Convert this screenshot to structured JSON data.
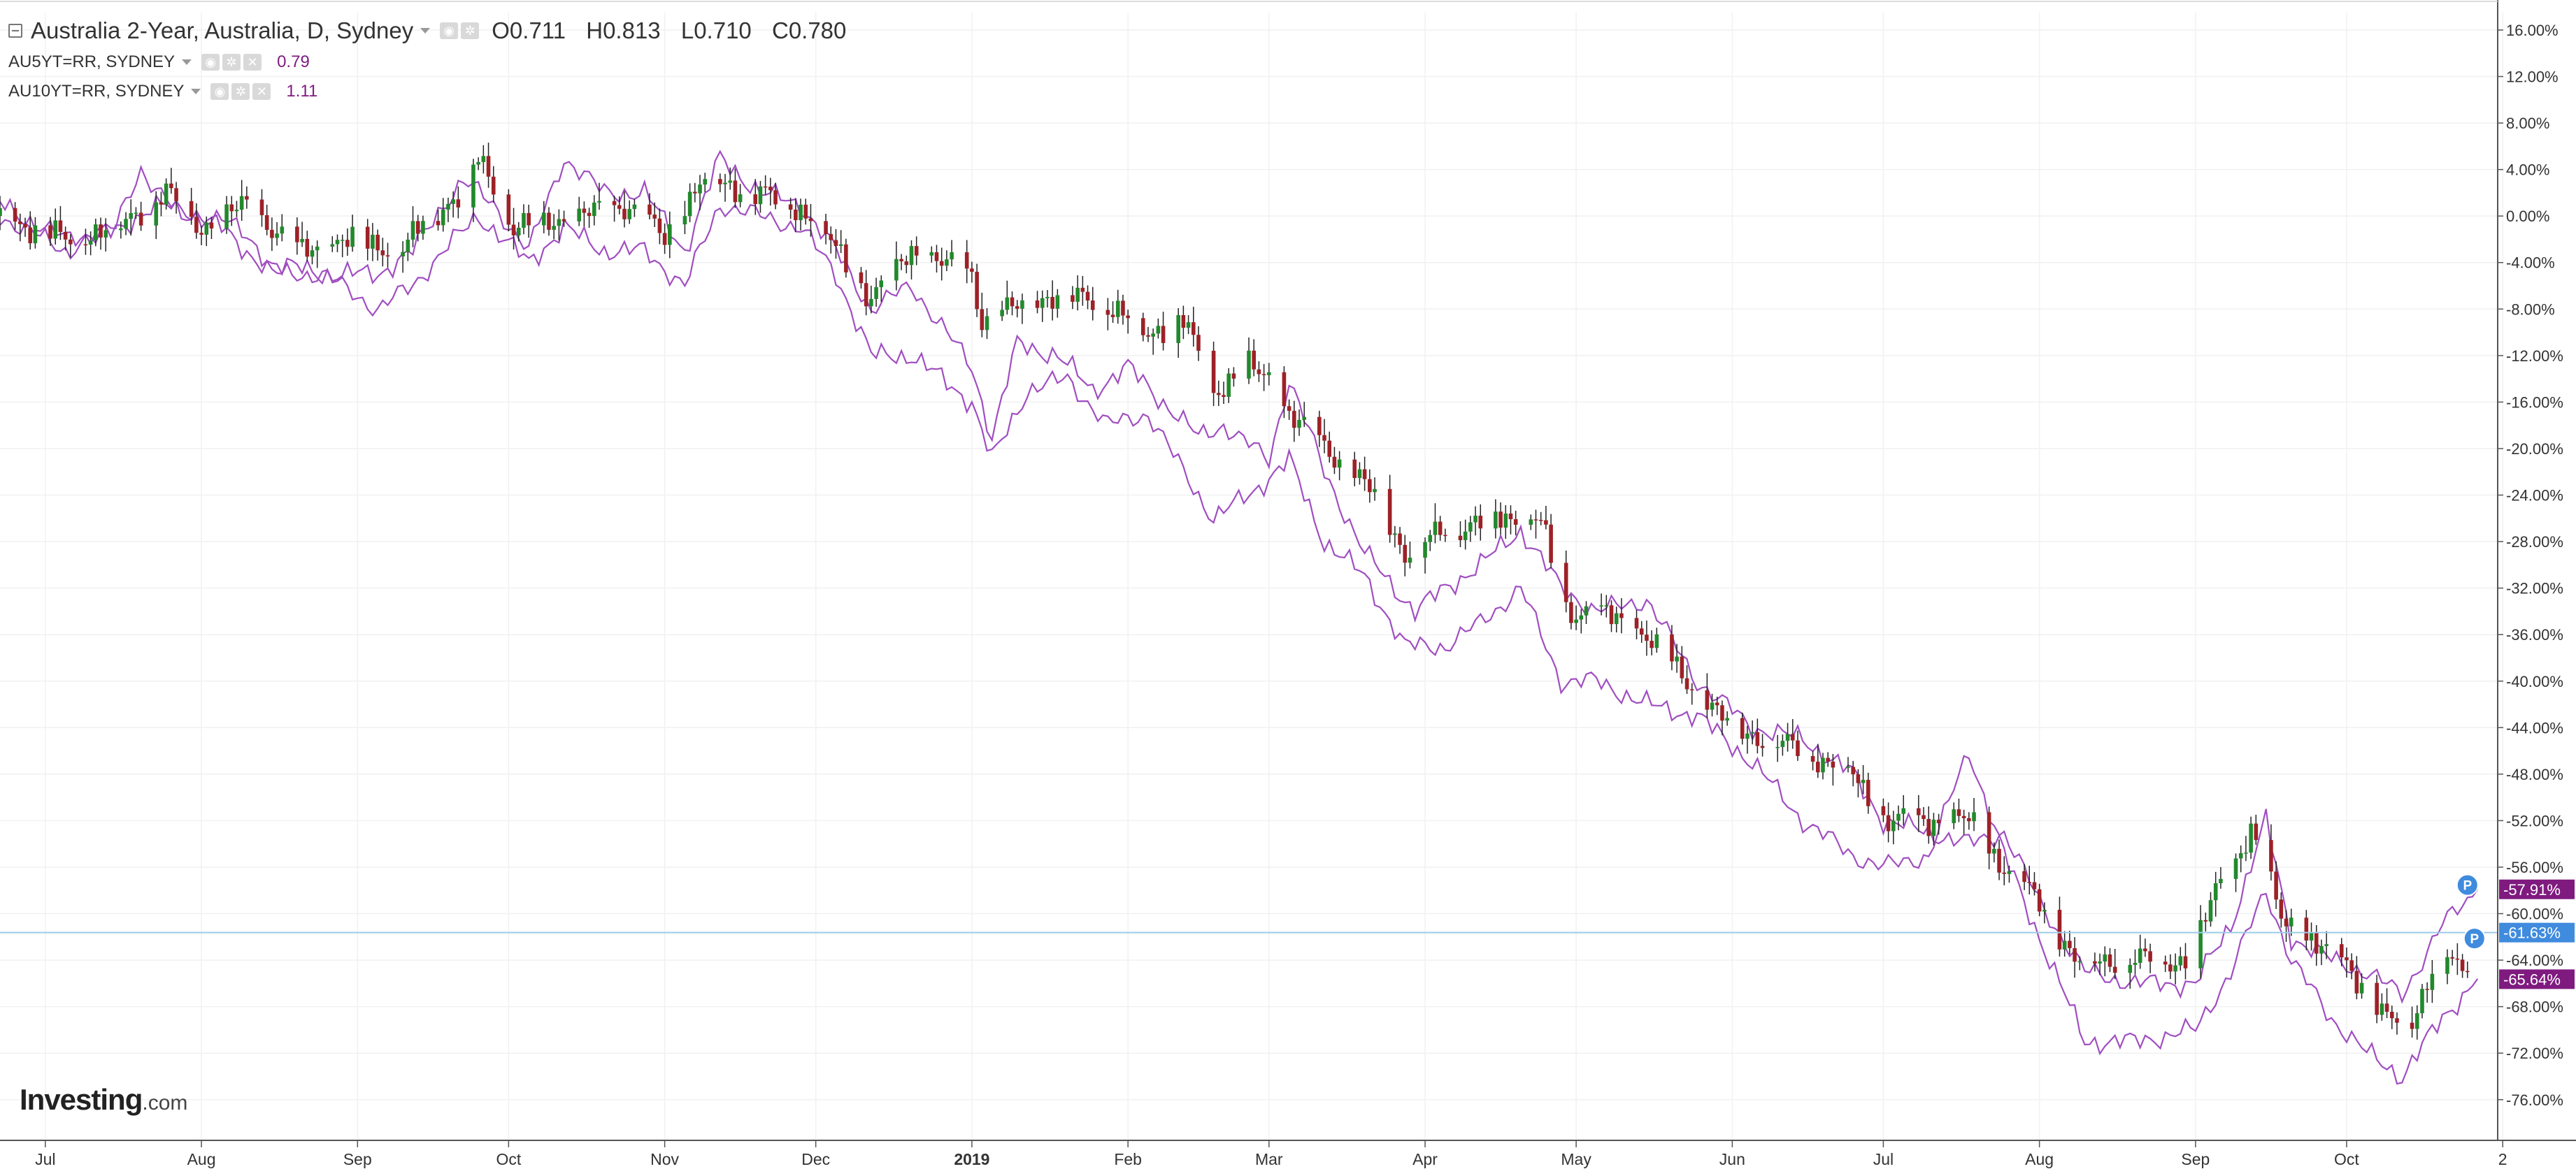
{
  "legend": {
    "main": {
      "title": "Australia 2-Year, Australia, D, Sydney",
      "o_label": "O",
      "o": "0.711",
      "h_label": "H",
      "h": "0.813",
      "l_label": "L",
      "l": "0.710",
      "c_label": "C",
      "c": "0.780"
    },
    "series": [
      {
        "title": "AU5YT=RR, SYDNEY",
        "value": "0.79"
      },
      {
        "title": "AU10YT=RR, SYDNEY",
        "value": "1.11"
      }
    ]
  },
  "logo": {
    "main": "Investing",
    "suffix": ".com"
  },
  "colors": {
    "up": "#22892c",
    "down": "#9d2127",
    "comparison": "#a04ec1",
    "price_line": "#9ccbe8",
    "label_purple": "#7f1a7f",
    "label_blue": "#3f8bde",
    "grid": "#f1f1f1",
    "axis": "#555555"
  },
  "price_labels": [
    "-57.91%",
    "-61.63%",
    "-65.64%"
  ],
  "markers": [
    "P",
    "P"
  ],
  "chart_data": {
    "type": "candlestick",
    "y_unit": "percent change",
    "ylim": [
      -79.5,
      17.5
    ],
    "y_ticks": [
      "16.00%",
      "12.00%",
      "8.00%",
      "4.00%",
      "0.00%",
      "-4.00%",
      "-8.00%",
      "-12.00%",
      "-16.00%",
      "-20.00%",
      "-24.00%",
      "-28.00%",
      "-32.00%",
      "-36.00%",
      "-40.00%",
      "-44.00%",
      "-48.00%",
      "-52.00%",
      "-56.00%",
      "-60.00%",
      "-64.00%",
      "-68.00%",
      "-72.00%",
      "-76.00%"
    ],
    "x_ticks": [
      {
        "label": "Jul",
        "date": "2018-07-01"
      },
      {
        "label": "Aug",
        "date": "2018-08-01"
      },
      {
        "label": "Sep",
        "date": "2018-09-01"
      },
      {
        "label": "Oct",
        "date": "2018-10-01"
      },
      {
        "label": "Nov",
        "date": "2018-11-01"
      },
      {
        "label": "Dec",
        "date": "2018-12-01"
      },
      {
        "label": "2019",
        "date": "2019-01-01",
        "bold": true
      },
      {
        "label": "Feb",
        "date": "2019-02-01"
      },
      {
        "label": "Mar",
        "date": "2019-03-01"
      },
      {
        "label": "Apr",
        "date": "2019-04-01"
      },
      {
        "label": "May",
        "date": "2019-05-01"
      },
      {
        "label": "Jun",
        "date": "2019-06-01"
      },
      {
        "label": "Jul",
        "date": "2019-07-01"
      },
      {
        "label": "Aug",
        "date": "2019-08-01"
      },
      {
        "label": "Sep",
        "date": "2019-09-01"
      },
      {
        "label": "Oct",
        "date": "2019-10-01"
      },
      {
        "label": "2",
        "date": "2019-11-01"
      }
    ],
    "x_range": [
      "2018-06-22",
      "2019-10-31"
    ],
    "current_value": -61.63,
    "series": [
      {
        "name": "Australia 2-Year",
        "style": "candles",
        "points": [
          [
            "2018-06-22",
            0
          ],
          [
            "2018-07-05",
            -2
          ],
          [
            "2018-07-15",
            -1
          ],
          [
            "2018-07-25",
            2
          ],
          [
            "2018-08-01",
            -1
          ],
          [
            "2018-08-10",
            1
          ],
          [
            "2018-08-20",
            -3
          ],
          [
            "2018-09-01",
            -2
          ],
          [
            "2018-09-10",
            -3
          ],
          [
            "2018-09-15",
            0
          ],
          [
            "2018-09-22",
            2
          ],
          [
            "2018-09-25",
            5
          ],
          [
            "2018-10-02",
            -1
          ],
          [
            "2018-10-15",
            0
          ],
          [
            "2018-10-25",
            1
          ],
          [
            "2018-11-01",
            -2
          ],
          [
            "2018-11-08",
            3
          ],
          [
            "2018-11-20",
            2
          ],
          [
            "2018-12-01",
            0
          ],
          [
            "2018-12-05",
            -3
          ],
          [
            "2018-12-12",
            -7
          ],
          [
            "2018-12-20",
            -3
          ],
          [
            "2019-01-01",
            -5
          ],
          [
            "2019-01-03",
            -9
          ],
          [
            "2019-01-15",
            -7
          ],
          [
            "2019-01-25",
            -7
          ],
          [
            "2019-02-05",
            -10
          ],
          [
            "2019-02-12",
            -9
          ],
          [
            "2019-02-18",
            -15
          ],
          [
            "2019-02-25",
            -13
          ],
          [
            "2019-03-01",
            -14
          ],
          [
            "2019-03-05",
            -17
          ],
          [
            "2019-03-15",
            -21
          ],
          [
            "2019-03-22",
            -24
          ],
          [
            "2019-03-28",
            -29
          ],
          [
            "2019-04-05",
            -27
          ],
          [
            "2019-04-15",
            -26
          ],
          [
            "2019-04-24",
            -26
          ],
          [
            "2019-04-28",
            -34
          ],
          [
            "2019-05-05",
            -34
          ],
          [
            "2019-05-15",
            -36
          ],
          [
            "2019-05-25",
            -41
          ],
          [
            "2019-06-01",
            -44
          ],
          [
            "2019-06-08",
            -45
          ],
          [
            "2019-06-15",
            -46
          ],
          [
            "2019-06-25",
            -48
          ],
          [
            "2019-07-01",
            -52
          ],
          [
            "2019-07-10",
            -52
          ],
          [
            "2019-07-18",
            -52
          ],
          [
            "2019-07-25",
            -56
          ],
          [
            "2019-08-01",
            -59
          ],
          [
            "2019-08-08",
            -64
          ],
          [
            "2019-08-20",
            -64
          ],
          [
            "2019-08-31",
            -64
          ],
          [
            "2019-09-05",
            -58
          ],
          [
            "2019-09-12",
            -53
          ],
          [
            "2019-09-18",
            -60
          ],
          [
            "2019-09-25",
            -63
          ],
          [
            "2019-10-01",
            -64
          ],
          [
            "2019-10-08",
            -69
          ],
          [
            "2019-10-14",
            -69
          ],
          [
            "2019-10-20",
            -63
          ],
          [
            "2019-10-24",
            -65
          ],
          [
            "2019-10-27",
            -61.6
          ]
        ]
      },
      {
        "name": "AU5YT=RR, SYDNEY",
        "style": "line",
        "points": [
          [
            "2018-06-22",
            1
          ],
          [
            "2018-07-05",
            -2
          ],
          [
            "2018-07-15",
            -1
          ],
          [
            "2018-07-20",
            4
          ],
          [
            "2018-07-28",
            0
          ],
          [
            "2018-08-05",
            0
          ],
          [
            "2018-08-15",
            -4
          ],
          [
            "2018-08-25",
            -5
          ],
          [
            "2018-09-05",
            -5
          ],
          [
            "2018-09-12",
            -3
          ],
          [
            "2018-09-18",
            1
          ],
          [
            "2018-09-22",
            3
          ],
          [
            "2018-09-28",
            1
          ],
          [
            "2018-10-05",
            -3
          ],
          [
            "2018-10-12",
            5
          ],
          [
            "2018-10-20",
            2
          ],
          [
            "2018-10-28",
            2
          ],
          [
            "2018-11-05",
            -3
          ],
          [
            "2018-11-12",
            5
          ],
          [
            "2018-11-20",
            2
          ],
          [
            "2018-11-28",
            1
          ],
          [
            "2018-12-05",
            -3
          ],
          [
            "2018-12-12",
            -8
          ],
          [
            "2018-12-20",
            -6
          ],
          [
            "2019-01-01",
            -13
          ],
          [
            "2019-01-05",
            -19
          ],
          [
            "2019-01-10",
            -11
          ],
          [
            "2019-01-18",
            -12
          ],
          [
            "2019-01-25",
            -15
          ],
          [
            "2019-02-01",
            -13
          ],
          [
            "2019-02-08",
            -16
          ],
          [
            "2019-02-15",
            -19
          ],
          [
            "2019-02-20",
            -18
          ],
          [
            "2019-03-01",
            -21
          ],
          [
            "2019-03-05",
            -14
          ],
          [
            "2019-03-12",
            -22
          ],
          [
            "2019-03-20",
            -29
          ],
          [
            "2019-03-30",
            -34
          ],
          [
            "2019-04-05",
            -32
          ],
          [
            "2019-04-12",
            -30
          ],
          [
            "2019-04-20",
            -27
          ],
          [
            "2019-04-28",
            -32
          ],
          [
            "2019-05-05",
            -34
          ],
          [
            "2019-05-15",
            -33
          ],
          [
            "2019-05-25",
            -40
          ],
          [
            "2019-06-05",
            -44
          ],
          [
            "2019-06-15",
            -45
          ],
          [
            "2019-06-25",
            -48
          ],
          [
            "2019-07-01",
            -52
          ],
          [
            "2019-07-10",
            -53
          ],
          [
            "2019-07-18",
            -54
          ],
          [
            "2019-07-25",
            -53
          ],
          [
            "2019-08-01",
            -59
          ],
          [
            "2019-08-10",
            -65
          ],
          [
            "2019-08-20",
            -66
          ],
          [
            "2019-09-01",
            -66
          ],
          [
            "2019-09-08",
            -61
          ],
          [
            "2019-09-15",
            -52
          ],
          [
            "2019-09-20",
            -62
          ],
          [
            "2019-09-28",
            -64
          ],
          [
            "2019-10-05",
            -65
          ],
          [
            "2019-10-12",
            -67
          ],
          [
            "2019-10-20",
            -61
          ],
          [
            "2019-10-27",
            -57.9
          ]
        ]
      },
      {
        "name": "AU10YT=RR, SYDNEY",
        "style": "line",
        "points": [
          [
            "2018-06-22",
            0
          ],
          [
            "2018-07-05",
            -3
          ],
          [
            "2018-07-15",
            -1
          ],
          [
            "2018-07-25",
            1
          ],
          [
            "2018-08-05",
            -1
          ],
          [
            "2018-08-15",
            -5
          ],
          [
            "2018-08-25",
            -5
          ],
          [
            "2018-09-05",
            -8
          ],
          [
            "2018-09-12",
            -6
          ],
          [
            "2018-09-18",
            -3
          ],
          [
            "2018-09-25",
            0
          ],
          [
            "2018-10-05",
            -4
          ],
          [
            "2018-10-12",
            -1
          ],
          [
            "2018-10-20",
            -3
          ],
          [
            "2018-10-28",
            -3
          ],
          [
            "2018-11-05",
            -6
          ],
          [
            "2018-11-12",
            1
          ],
          [
            "2018-11-20",
            0
          ],
          [
            "2018-11-28",
            -1
          ],
          [
            "2018-12-05",
            -5
          ],
          [
            "2018-12-12",
            -12
          ],
          [
            "2018-12-20",
            -12
          ],
          [
            "2019-01-01",
            -16
          ],
          [
            "2019-01-05",
            -21
          ],
          [
            "2019-01-12",
            -15
          ],
          [
            "2019-01-20",
            -14
          ],
          [
            "2019-01-28",
            -18
          ],
          [
            "2019-02-05",
            -17
          ],
          [
            "2019-02-12",
            -22
          ],
          [
            "2019-02-18",
            -26
          ],
          [
            "2019-02-25",
            -24
          ],
          [
            "2019-03-05",
            -21
          ],
          [
            "2019-03-12",
            -28
          ],
          [
            "2019-03-20",
            -31
          ],
          [
            "2019-03-28",
            -37
          ],
          [
            "2019-04-05",
            -37
          ],
          [
            "2019-04-12",
            -35
          ],
          [
            "2019-04-20",
            -32
          ],
          [
            "2019-04-28",
            -40
          ],
          [
            "2019-05-05",
            -40
          ],
          [
            "2019-05-15",
            -42
          ],
          [
            "2019-05-25",
            -43
          ],
          [
            "2019-06-05",
            -47
          ],
          [
            "2019-06-15",
            -52
          ],
          [
            "2019-06-25",
            -55
          ],
          [
            "2019-07-01",
            -56
          ],
          [
            "2019-07-10",
            -55
          ],
          [
            "2019-07-18",
            -46
          ],
          [
            "2019-07-25",
            -55
          ],
          [
            "2019-08-01",
            -62
          ],
          [
            "2019-08-10",
            -71
          ],
          [
            "2019-08-20",
            -71
          ],
          [
            "2019-09-01",
            -70
          ],
          [
            "2019-09-08",
            -65
          ],
          [
            "2019-09-15",
            -58
          ],
          [
            "2019-09-20",
            -64
          ],
          [
            "2019-09-28",
            -69
          ],
          [
            "2019-10-05",
            -72
          ],
          [
            "2019-10-12",
            -74
          ],
          [
            "2019-10-20",
            -69
          ],
          [
            "2019-10-27",
            -65.6
          ]
        ]
      }
    ],
    "grid": true,
    "legend_position": "top-left"
  }
}
